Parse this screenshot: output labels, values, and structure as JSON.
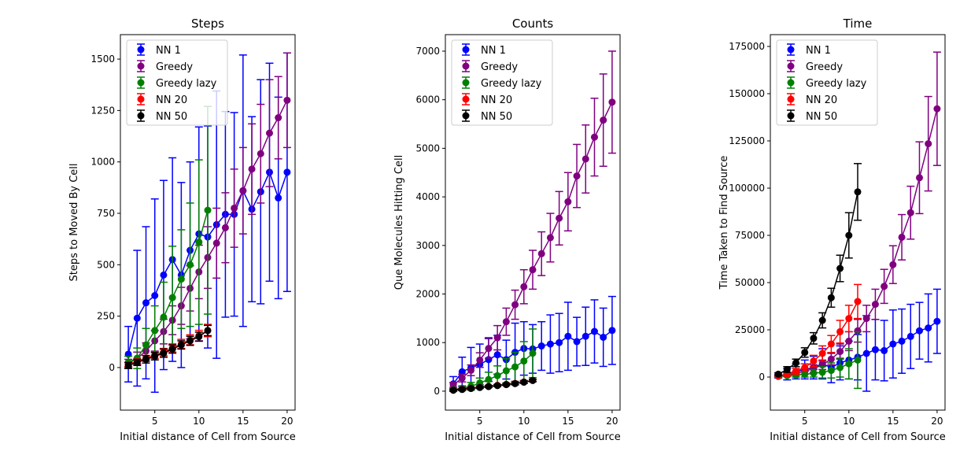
{
  "chart_data": [
    {
      "type": "line",
      "title": "Steps",
      "x_label": "Initial distance of Cell from Source",
      "y_label": "Steps to Moved By Cell",
      "xlim": [
        1.1,
        20.9
      ],
      "xticks": [
        5,
        10,
        15,
        20
      ],
      "ylim": [
        -207,
        1619
      ],
      "yticks": [
        0,
        250,
        500,
        750,
        1000,
        1250,
        1500
      ],
      "legend": "upper left",
      "series": [
        {
          "name": "NN 1",
          "color": "#0000ff",
          "x": [
            2,
            3,
            4,
            5,
            6,
            7,
            8,
            9,
            10,
            11,
            12,
            13,
            14,
            15,
            16,
            17,
            18,
            19,
            20
          ],
          "values": [
            65,
            240,
            315,
            350,
            450,
            525,
            450,
            570,
            650,
            635,
            695,
            745,
            745,
            860,
            770,
            855,
            950,
            825,
            950
          ],
          "errors": [
            135,
            330,
            370,
            470,
            460,
            495,
            450,
            430,
            520,
            540,
            650,
            500,
            495,
            660,
            450,
            545,
            530,
            490,
            580
          ]
        },
        {
          "name": "Greedy",
          "color": "#800080",
          "x": [
            2,
            3,
            4,
            5,
            6,
            7,
            8,
            9,
            10,
            11,
            12,
            13,
            14,
            15,
            16,
            17,
            18,
            19,
            20
          ],
          "values": [
            20,
            45,
            80,
            130,
            175,
            230,
            300,
            385,
            465,
            535,
            605,
            680,
            775,
            860,
            965,
            1040,
            1140,
            1215,
            1300
          ],
          "errors": [
            20,
            30,
            40,
            50,
            60,
            70,
            90,
            110,
            130,
            150,
            170,
            170,
            190,
            210,
            220,
            240,
            260,
            200,
            230
          ]
        },
        {
          "name": "Greedy lazy",
          "color": "#008000",
          "x": [
            2,
            3,
            4,
            5,
            6,
            7,
            8,
            9,
            10,
            11
          ],
          "values": [
            25,
            45,
            110,
            180,
            245,
            340,
            430,
            500,
            610,
            765
          ],
          "errors": [
            30,
            50,
            80,
            120,
            170,
            250,
            240,
            300,
            400,
            505
          ]
        },
        {
          "name": "NN 20",
          "color": "#ff0000",
          "x": [
            2,
            3,
            4,
            5,
            6,
            7,
            8,
            9,
            10,
            11
          ],
          "values": [
            15,
            30,
            45,
            60,
            75,
            95,
            115,
            135,
            155,
            180
          ],
          "errors": [
            10,
            12,
            14,
            16,
            18,
            20,
            22,
            24,
            26,
            30
          ]
        },
        {
          "name": "NN 50",
          "color": "#000000",
          "x": [
            2,
            3,
            4,
            5,
            6,
            7,
            8,
            9,
            10,
            11
          ],
          "values": [
            10,
            25,
            40,
            55,
            70,
            90,
            110,
            130,
            150,
            180
          ],
          "errors": [
            15,
            15,
            18,
            18,
            20,
            20,
            20,
            22,
            22,
            25
          ]
        }
      ]
    },
    {
      "type": "line",
      "title": "Counts",
      "x_label": "Initial distance of Cell from Source",
      "y_label": "Que Molecules Hitting Cell",
      "xlim": [
        1.1,
        20.9
      ],
      "xticks": [
        5,
        10,
        15,
        20
      ],
      "ylim": [
        -390,
        7340
      ],
      "yticks": [
        0,
        1000,
        2000,
        3000,
        4000,
        5000,
        6000,
        7000
      ],
      "legend": "upper left",
      "series": [
        {
          "name": "NN 1",
          "color": "#0000ff",
          "x": [
            2,
            3,
            4,
            5,
            6,
            7,
            8,
            9,
            10,
            11,
            12,
            13,
            14,
            15,
            16,
            17,
            18,
            19,
            20
          ],
          "values": [
            150,
            400,
            480,
            550,
            650,
            750,
            650,
            800,
            880,
            870,
            930,
            970,
            1000,
            1130,
            1020,
            1130,
            1230,
            1110,
            1250
          ],
          "errors": [
            150,
            300,
            420,
            420,
            450,
            400,
            400,
            600,
            550,
            500,
            500,
            600,
            600,
            700,
            500,
            600,
            650,
            600,
            700
          ]
        },
        {
          "name": "Greedy",
          "color": "#800080",
          "x": [
            2,
            3,
            4,
            5,
            6,
            7,
            8,
            9,
            10,
            11,
            12,
            13,
            14,
            15,
            16,
            17,
            18,
            19,
            20
          ],
          "values": [
            130,
            270,
            430,
            640,
            880,
            1100,
            1430,
            1780,
            2150,
            2500,
            2830,
            3160,
            3560,
            3900,
            4430,
            4780,
            5230,
            5580,
            5950
          ],
          "errors": [
            50,
            80,
            110,
            150,
            200,
            250,
            280,
            300,
            350,
            400,
            450,
            500,
            550,
            600,
            650,
            700,
            800,
            950,
            1050
          ]
        },
        {
          "name": "Greedy lazy",
          "color": "#008000",
          "x": [
            2,
            3,
            4,
            5,
            6,
            7,
            8,
            9,
            10,
            11
          ],
          "values": [
            30,
            60,
            100,
            170,
            240,
            320,
            420,
            500,
            620,
            780
          ],
          "errors": [
            20,
            50,
            80,
            100,
            150,
            200,
            250,
            300,
            400,
            500
          ]
        },
        {
          "name": "NN 20",
          "color": "#ff0000",
          "x": [
            2,
            3,
            4,
            5,
            6,
            7,
            8,
            9,
            10,
            11
          ],
          "values": [
            20,
            40,
            60,
            80,
            100,
            120,
            140,
            160,
            190,
            220
          ],
          "errors": [
            20,
            20,
            20,
            20,
            20,
            20,
            20,
            25,
            25,
            25
          ]
        },
        {
          "name": "NN 50",
          "color": "#000000",
          "x": [
            2,
            3,
            4,
            5,
            6,
            7,
            8,
            9,
            10,
            11
          ],
          "values": [
            20,
            35,
            55,
            75,
            95,
            115,
            135,
            155,
            185,
            220
          ],
          "errors": [
            20,
            20,
            20,
            20,
            20,
            20,
            20,
            25,
            25,
            25
          ]
        }
      ]
    },
    {
      "type": "line",
      "title": "Time",
      "x_label": "Initial distance of Cell from Source",
      "y_label": "Time Taken to Find Source",
      "xlim": [
        1.1,
        20.9
      ],
      "xticks": [
        5,
        10,
        15,
        20
      ],
      "ylim": [
        -17500,
        181250
      ],
      "yticks": [
        0,
        25000,
        50000,
        75000,
        100000,
        125000,
        150000,
        175000
      ],
      "legend": "upper left",
      "series": [
        {
          "name": "NN 1",
          "color": "#0000ff",
          "x": [
            2,
            3,
            4,
            5,
            6,
            7,
            8,
            9,
            10,
            11,
            12,
            13,
            14,
            15,
            16,
            17,
            18,
            19,
            20
          ],
          "values": [
            500,
            1500,
            3000,
            4000,
            5000,
            7000,
            5000,
            7500,
            9000,
            10500,
            12500,
            14500,
            14000,
            17500,
            19000,
            21500,
            24500,
            26000,
            29500
          ],
          "errors": [
            1000,
            3000,
            4000,
            5000,
            6000,
            8000,
            8000,
            9000,
            10000,
            12000,
            20000,
            16000,
            16000,
            18000,
            17000,
            17000,
            15000,
            18000,
            17000
          ]
        },
        {
          "name": "Greedy",
          "color": "#800080",
          "x": [
            2,
            3,
            4,
            5,
            6,
            7,
            8,
            9,
            10,
            11,
            12,
            13,
            14,
            15,
            16,
            17,
            18,
            19,
            20
          ],
          "values": [
            500,
            1000,
            2000,
            3000,
            4500,
            6500,
            9500,
            13500,
            19000,
            24500,
            31000,
            38500,
            48000,
            59500,
            74000,
            87000,
            105500,
            123500,
            142000
          ],
          "errors": [
            500,
            700,
            1000,
            1500,
            2000,
            2500,
            3000,
            4000,
            5000,
            6000,
            7000,
            8000,
            9000,
            10000,
            12000,
            14000,
            19000,
            25000,
            30000
          ]
        },
        {
          "name": "Greedy lazy",
          "color": "#008000",
          "x": [
            2,
            3,
            4,
            5,
            6,
            7,
            8,
            9,
            10,
            11
          ],
          "values": [
            300,
            700,
            1000,
            1500,
            2000,
            2500,
            3500,
            5000,
            7000,
            9000
          ],
          "errors": [
            300,
            500,
            1000,
            1500,
            2000,
            3000,
            4000,
            5000,
            8000,
            15000
          ]
        },
        {
          "name": "NN 20",
          "color": "#ff0000",
          "x": [
            2,
            3,
            4,
            5,
            6,
            7,
            8,
            9,
            10,
            11
          ],
          "values": [
            500,
            1500,
            3000,
            5000,
            8500,
            12500,
            17500,
            24000,
            31000,
            40000
          ],
          "errors": [
            500,
            1000,
            1500,
            2000,
            3000,
            4000,
            4500,
            6000,
            7000,
            9000
          ]
        },
        {
          "name": "NN 50",
          "color": "#000000",
          "x": [
            2,
            3,
            4,
            5,
            6,
            7,
            8,
            9,
            10,
            11
          ],
          "values": [
            1500,
            4000,
            7500,
            13000,
            20500,
            30000,
            42000,
            57500,
            75000,
            98000
          ],
          "errors": [
            800,
            1500,
            2000,
            2500,
            3000,
            4000,
            5000,
            7000,
            12000,
            15000
          ]
        }
      ]
    }
  ]
}
